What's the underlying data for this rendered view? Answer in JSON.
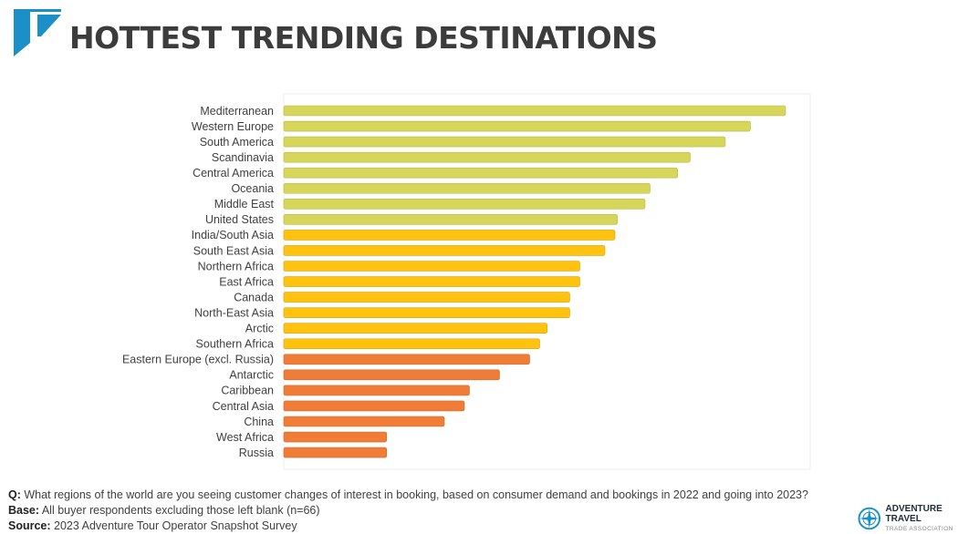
{
  "header": {
    "title": "HOTTEST TRENDING DESTINATIONS"
  },
  "colors": {
    "tier1": "#d6d65a",
    "tier2": "#ffc20e",
    "tier3": "#ef7d37",
    "accent": "#1b8fc7",
    "title": "#3c3c3c"
  },
  "chart_data": {
    "type": "bar",
    "orientation": "horizontal",
    "categories": [
      "Mediterranean",
      "Western Europe",
      "South America",
      "Scandinavia",
      "Central America",
      "Oceania",
      "Middle East",
      "United States",
      "India/South Asia",
      "South East Asia",
      "Northern Africa",
      "East Africa",
      "Canada",
      "North-East Asia",
      "Arctic",
      "Southern Africa",
      "Eastern Europe (excl. Russia)",
      "Antarctic",
      "Caribbean",
      "Central Asia",
      "China",
      "West Africa",
      "Russia"
    ],
    "values": [
      100,
      93,
      88,
      81,
      78.5,
      73,
      72,
      66.5,
      66,
      64,
      59,
      59,
      57,
      57,
      52.5,
      51,
      49,
      43,
      37,
      36,
      32,
      20.5,
      20.5
    ],
    "tiers": [
      1,
      1,
      1,
      1,
      1,
      1,
      1,
      1,
      2,
      2,
      2,
      2,
      2,
      2,
      2,
      2,
      3,
      3,
      3,
      3,
      3,
      3,
      3
    ],
    "xlim": [
      0,
      100
    ],
    "title": "",
    "xlabel": "",
    "ylabel": "",
    "grid": false,
    "legend": false
  },
  "footer": {
    "question_label": "Q:",
    "question": "What regions of the world are you seeing customer changes of interest in booking, based on consumer demand and bookings in 2022 and going into 2023?",
    "base_label": "Base:",
    "base": "All buyer respondents excluding those left blank (n=66)",
    "source_label": "Source:",
    "source": "2023 Adventure Tour Operator Snapshot Survey"
  },
  "brand": {
    "name": "ADVENTURE TRAVEL",
    "tagline": "TRADE ASSOCIATION",
    "icon": "compass-logo-icon"
  }
}
